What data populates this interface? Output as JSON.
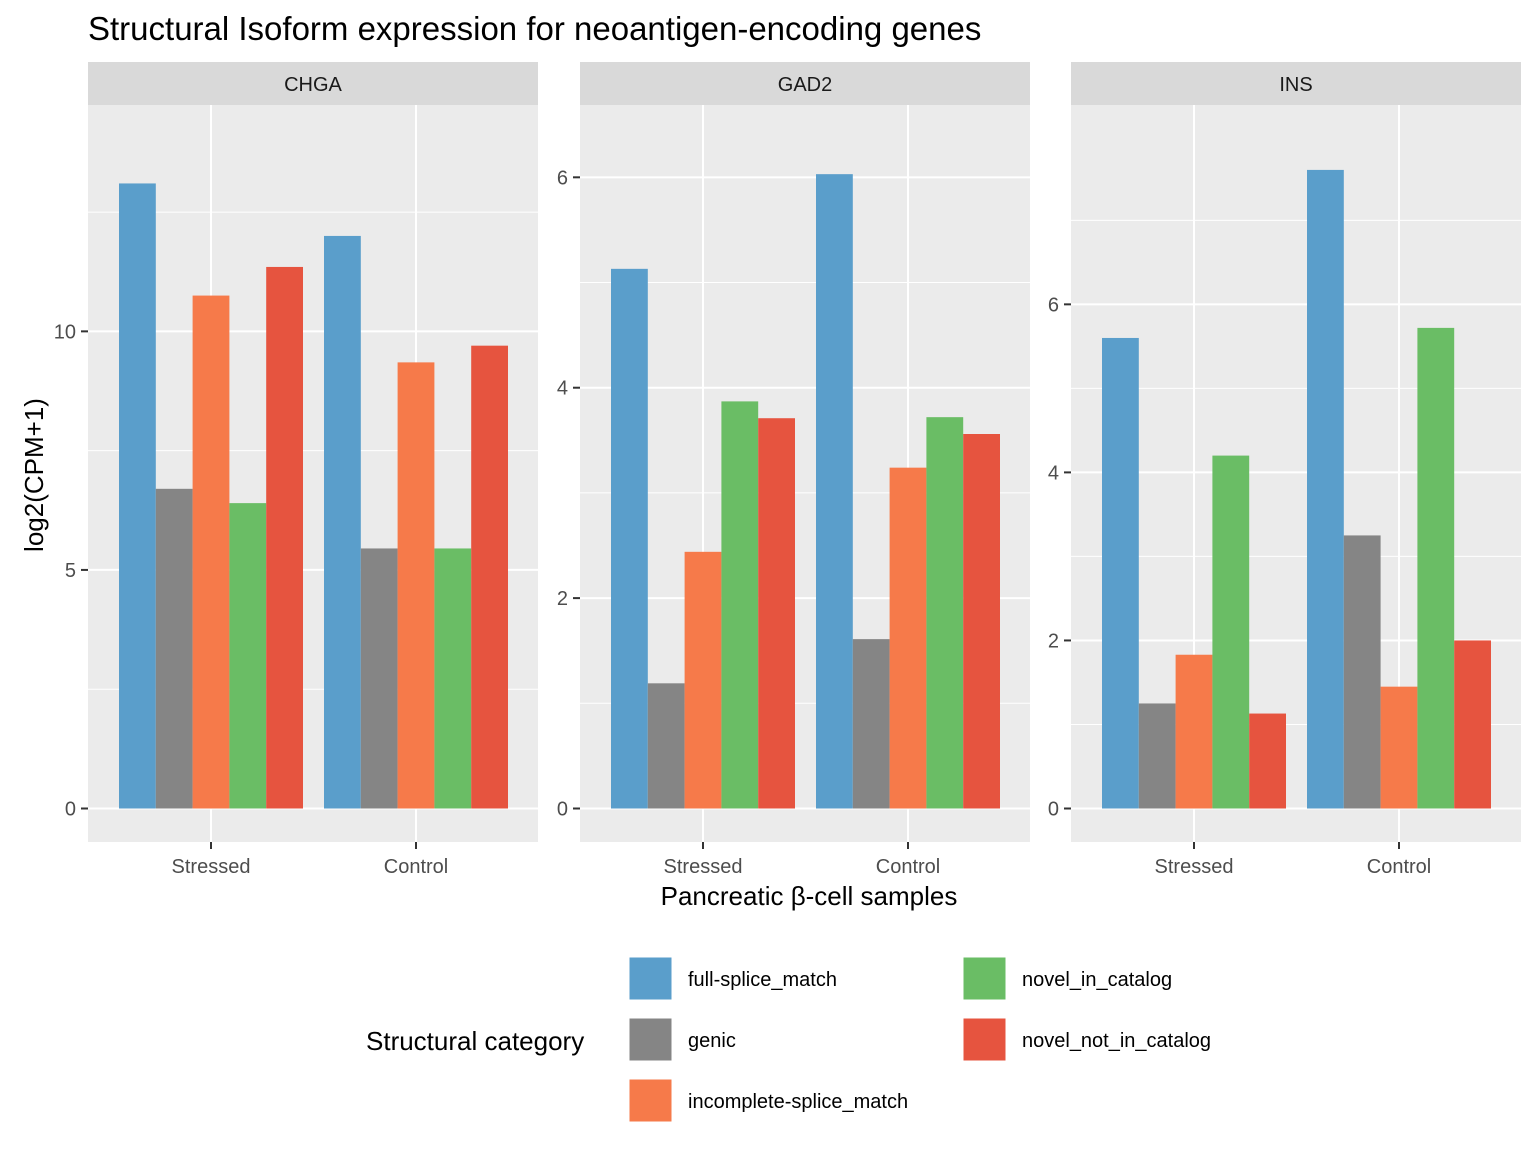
{
  "chart_data": {
    "type": "bar",
    "title": "Structural Isoform expression for neoantigen-encoding genes",
    "xlabel": "Pancreatic β-cell samples",
    "ylabel": "log2(CPM+1)",
    "categories": [
      "Stressed",
      "Control"
    ],
    "legend": {
      "title": "Structural category",
      "position": "bottom"
    },
    "series_meta": [
      {
        "name": "full-splice_match",
        "color": "#5a9ecb"
      },
      {
        "name": "genic",
        "color": "#858585"
      },
      {
        "name": "incomplete-splice_match",
        "color": "#f67a4a"
      },
      {
        "name": "novel_in_catalog",
        "color": "#6abd65"
      },
      {
        "name": "novel_not_in_catalog",
        "color": "#e6543f"
      }
    ],
    "facets": [
      {
        "name": "CHGA",
        "ylim": [
          0,
          14
        ],
        "major_ticks": [
          0,
          5,
          10
        ],
        "series": [
          {
            "name": "full-splice_match",
            "values": [
              13.1,
              12.0
            ]
          },
          {
            "name": "genic",
            "values": [
              6.7,
              5.45
            ]
          },
          {
            "name": "incomplete-splice_match",
            "values": [
              10.75,
              9.35
            ]
          },
          {
            "name": "novel_in_catalog",
            "values": [
              6.4,
              5.45
            ]
          },
          {
            "name": "novel_not_in_catalog",
            "values": [
              11.35,
              9.7
            ]
          }
        ]
      },
      {
        "name": "GAD2",
        "ylim": [
          0,
          6.35
        ],
        "major_ticks": [
          0,
          2,
          4,
          6
        ],
        "series": [
          {
            "name": "full-splice_match",
            "values": [
              5.13,
              6.03
            ]
          },
          {
            "name": "genic",
            "values": [
              1.19,
              1.61
            ]
          },
          {
            "name": "incomplete-splice_match",
            "values": [
              2.44,
              3.24
            ]
          },
          {
            "name": "novel_in_catalog",
            "values": [
              3.87,
              3.72
            ]
          },
          {
            "name": "novel_not_in_catalog",
            "values": [
              3.71,
              3.56
            ]
          }
        ]
      },
      {
        "name": "INS",
        "ylim": [
          0,
          7.95
        ],
        "major_ticks": [
          0,
          2,
          4,
          6
        ],
        "series": [
          {
            "name": "full-splice_match",
            "values": [
              5.6,
              7.6
            ]
          },
          {
            "name": "genic",
            "values": [
              1.25,
              3.25
            ]
          },
          {
            "name": "incomplete-splice_match",
            "values": [
              1.83,
              1.45
            ]
          },
          {
            "name": "novel_in_catalog",
            "values": [
              4.2,
              5.72
            ]
          },
          {
            "name": "novel_not_in_catalog",
            "values": [
              1.13,
              2.0
            ]
          }
        ]
      }
    ],
    "grid": true
  }
}
